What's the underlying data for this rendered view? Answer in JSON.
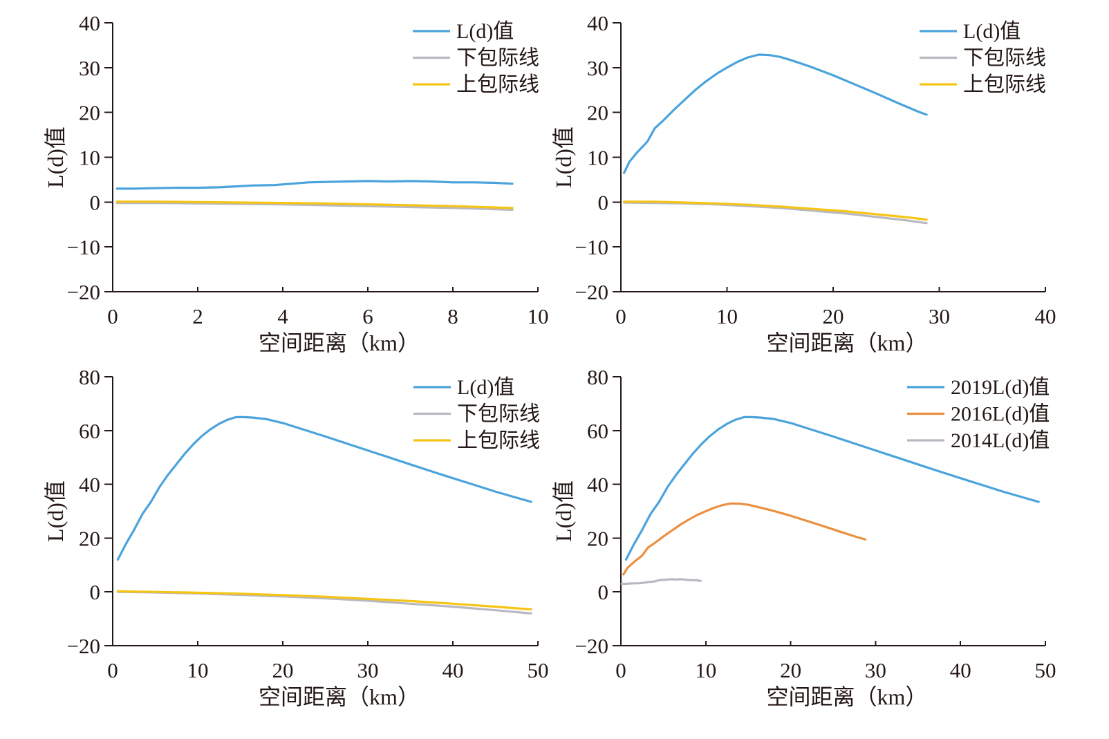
{
  "chart_data": [
    {
      "type": "line",
      "xlabel": "空间距离（km）",
      "ylabel": "L(d)值",
      "xlim": [
        0,
        10
      ],
      "ylim": [
        -20,
        40
      ],
      "xticks": [
        0,
        2,
        4,
        6,
        8,
        10
      ],
      "xtick_labels": [
        "0",
        "2",
        "4",
        "6",
        "8",
        "10"
      ],
      "yticks": [
        40,
        30,
        20,
        10,
        0,
        -10,
        -20
      ],
      "ytick_labels": [
        "40",
        "30",
        "20",
        "10",
        "0",
        "−10",
        "−20"
      ],
      "grid": false,
      "legend": "top-right",
      "series": [
        {
          "name": "L(d)值",
          "color": "#4ba3dc",
          "x": [
            0.1,
            0.5,
            1.0,
            1.5,
            2.0,
            2.5,
            2.9,
            3.3,
            3.8,
            4.2,
            4.6,
            5.0,
            5.5,
            6.0,
            6.5,
            7.0,
            7.5,
            8.0,
            8.5,
            9.0,
            9.4
          ],
          "y": [
            3.0,
            3.0,
            3.1,
            3.2,
            3.2,
            3.3,
            3.5,
            3.7,
            3.8,
            4.1,
            4.4,
            4.5,
            4.6,
            4.7,
            4.6,
            4.7,
            4.6,
            4.4,
            4.4,
            4.3,
            4.1
          ]
        },
        {
          "name": "下包际线",
          "color": "#b9b8c0",
          "x": [
            0.1,
            1,
            2,
            3,
            4,
            5,
            6,
            7,
            8,
            9,
            9.4
          ],
          "y": [
            -0.2,
            -0.2,
            -0.3,
            -0.4,
            -0.5,
            -0.7,
            -0.9,
            -1.1,
            -1.3,
            -1.6,
            -1.7
          ]
        },
        {
          "name": "上包际线",
          "color": "#f5c414",
          "x": [
            0.1,
            1,
            2,
            3,
            4,
            5,
            6,
            7,
            8,
            9,
            9.4
          ],
          "y": [
            0.1,
            0.1,
            0.0,
            -0.1,
            -0.2,
            -0.3,
            -0.5,
            -0.7,
            -0.9,
            -1.2,
            -1.3
          ]
        }
      ]
    },
    {
      "type": "line",
      "xlabel": "空间距离（km）",
      "ylabel": "L(d)值",
      "xlim": [
        0,
        40
      ],
      "ylim": [
        -20,
        40
      ],
      "xticks": [
        0,
        10,
        20,
        30,
        40
      ],
      "xtick_labels": [
        "0",
        "10",
        "20",
        "30",
        "40"
      ],
      "yticks": [
        40,
        30,
        20,
        10,
        0,
        -10,
        -20
      ],
      "ytick_labels": [
        "40",
        "30",
        "20",
        "10",
        "0",
        "−10",
        "−20"
      ],
      "grid": false,
      "legend": "top-right",
      "series": [
        {
          "name": "L(d)值",
          "color": "#4ba3dc",
          "x": [
            0.3,
            0.8,
            1.5,
            2.5,
            3.2,
            4.0,
            5.0,
            6.0,
            7.0,
            8.0,
            9.0,
            10.0,
            11.0,
            12.0,
            13.0,
            14.0,
            15.0,
            16.0,
            18.0,
            20.0,
            22.0,
            24.0,
            26.0,
            28.0,
            28.8
          ],
          "y": [
            6.5,
            9.0,
            11.0,
            13.5,
            16.5,
            18.2,
            20.6,
            22.8,
            25.0,
            26.9,
            28.6,
            30.0,
            31.3,
            32.3,
            32.9,
            32.8,
            32.4,
            31.7,
            30.1,
            28.3,
            26.3,
            24.3,
            22.2,
            20.2,
            19.5
          ]
        },
        {
          "name": "下包际线",
          "color": "#b9b8c0",
          "x": [
            0.3,
            3,
            6,
            9,
            12,
            15,
            18,
            21,
            24,
            27,
            28.8
          ],
          "y": [
            -0.1,
            -0.2,
            -0.3,
            -0.5,
            -0.9,
            -1.3,
            -1.9,
            -2.5,
            -3.3,
            -4.1,
            -4.7
          ]
        },
        {
          "name": "上包际线",
          "color": "#f5c414",
          "x": [
            0.3,
            3,
            6,
            9,
            12,
            15,
            18,
            21,
            24,
            27,
            28.8
          ],
          "y": [
            0.1,
            0.1,
            -0.1,
            -0.3,
            -0.6,
            -1.0,
            -1.5,
            -2.0,
            -2.7,
            -3.4,
            -3.9
          ]
        }
      ]
    },
    {
      "type": "line",
      "xlabel": "空间距离（km）",
      "ylabel": "L(d)值",
      "xlim": [
        0,
        50
      ],
      "ylim": [
        -20,
        80
      ],
      "xticks": [
        0,
        10,
        20,
        30,
        40,
        50
      ],
      "xtick_labels": [
        "0",
        "10",
        "20",
        "30",
        "40",
        "50"
      ],
      "yticks": [
        80,
        60,
        40,
        20,
        0,
        -20
      ],
      "ytick_labels": [
        "80",
        "60",
        "40",
        "20",
        "0",
        "−20"
      ],
      "grid": false,
      "legend": "top-right",
      "series": [
        {
          "name": "L(d)值",
          "color": "#4ba3dc",
          "x": [
            0.6,
            1.5,
            2.5,
            3.5,
            4.5,
            5.5,
            6.5,
            7.5,
            8.5,
            9.5,
            10.5,
            11.5,
            12.5,
            13.5,
            14.5,
            15.5,
            16.5,
            18.0,
            20.0,
            22.5,
            25.0,
            27.5,
            30.0,
            32.5,
            35.0,
            37.5,
            40.0,
            42.5,
            45.0,
            47.5,
            49.2
          ],
          "y": [
            12.0,
            17.5,
            23.0,
            29.0,
            33.5,
            39.0,
            43.5,
            47.5,
            51.5,
            55.0,
            58.0,
            60.5,
            62.5,
            64.0,
            65.0,
            65.0,
            64.8,
            64.3,
            62.8,
            60.3,
            57.8,
            55.2,
            52.6,
            50.0,
            47.4,
            44.8,
            42.3,
            39.8,
            37.3,
            35.0,
            33.5
          ]
        },
        {
          "name": "下包际线",
          "color": "#b9b8c0",
          "x": [
            0.6,
            5,
            10,
            15,
            20,
            25,
            30,
            35,
            40,
            45,
            49.2
          ],
          "y": [
            0.0,
            -0.2,
            -0.6,
            -1.1,
            -1.7,
            -2.4,
            -3.3,
            -4.4,
            -5.5,
            -6.8,
            -8.0
          ]
        },
        {
          "name": "上包际线",
          "color": "#f5c414",
          "x": [
            0.6,
            5,
            10,
            15,
            20,
            25,
            30,
            35,
            40,
            45,
            49.2
          ],
          "y": [
            0.2,
            0.0,
            -0.3,
            -0.7,
            -1.2,
            -1.8,
            -2.6,
            -3.4,
            -4.4,
            -5.5,
            -6.5
          ]
        }
      ]
    },
    {
      "type": "line",
      "xlabel": "空间距离（km）",
      "ylabel": "L(d)值",
      "xlim": [
        0,
        50
      ],
      "ylim": [
        -20,
        80
      ],
      "xticks": [
        0,
        10,
        20,
        30,
        40,
        50
      ],
      "xtick_labels": [
        "0",
        "10",
        "20",
        "30",
        "40",
        "50"
      ],
      "yticks": [
        80,
        60,
        40,
        20,
        0,
        -20
      ],
      "ytick_labels": [
        "80",
        "60",
        "40",
        "20",
        "0",
        "−20"
      ],
      "grid": false,
      "legend": "top-right",
      "series": [
        {
          "name": "2019L(d)值",
          "color": "#4ba3dc",
          "x": [
            0.6,
            1.5,
            2.5,
            3.5,
            4.5,
            5.5,
            6.5,
            7.5,
            8.5,
            9.5,
            10.5,
            11.5,
            12.5,
            13.5,
            14.5,
            15.5,
            16.5,
            18.0,
            20.0,
            22.5,
            25.0,
            27.5,
            30.0,
            32.5,
            35.0,
            37.5,
            40.0,
            42.5,
            45.0,
            47.5,
            49.2
          ],
          "y": [
            12.0,
            17.5,
            23.0,
            29.0,
            33.5,
            39.0,
            43.5,
            47.5,
            51.5,
            55.0,
            58.0,
            60.5,
            62.5,
            64.0,
            65.0,
            65.0,
            64.8,
            64.3,
            62.8,
            60.3,
            57.8,
            55.2,
            52.6,
            50.0,
            47.4,
            44.8,
            42.3,
            39.8,
            37.3,
            35.0,
            33.5
          ]
        },
        {
          "name": "2016L(d)值",
          "color": "#ea9040",
          "x": [
            0.3,
            0.8,
            1.5,
            2.5,
            3.2,
            4.0,
            5.0,
            6.0,
            7.0,
            8.0,
            9.0,
            10.0,
            11.0,
            12.0,
            13.0,
            14.0,
            15.0,
            16.0,
            18.0,
            20.0,
            22.0,
            24.0,
            26.0,
            28.0,
            28.8
          ],
          "y": [
            6.5,
            9.0,
            11.0,
            13.5,
            16.5,
            18.2,
            20.6,
            22.8,
            25.0,
            26.9,
            28.6,
            30.0,
            31.3,
            32.3,
            32.9,
            32.8,
            32.4,
            31.7,
            30.1,
            28.3,
            26.3,
            24.3,
            22.2,
            20.2,
            19.5
          ]
        },
        {
          "name": "2014L(d)值",
          "color": "#b9b8c0",
          "x": [
            0.1,
            0.5,
            1.0,
            1.5,
            2.0,
            2.5,
            2.9,
            3.3,
            3.8,
            4.2,
            4.6,
            5.0,
            5.5,
            6.0,
            6.5,
            7.0,
            7.5,
            8.0,
            8.5,
            9.0,
            9.4
          ],
          "y": [
            3.0,
            3.0,
            3.1,
            3.2,
            3.2,
            3.3,
            3.5,
            3.7,
            3.8,
            4.1,
            4.4,
            4.5,
            4.6,
            4.7,
            4.6,
            4.7,
            4.6,
            4.4,
            4.4,
            4.3,
            4.1
          ]
        }
      ]
    }
  ]
}
